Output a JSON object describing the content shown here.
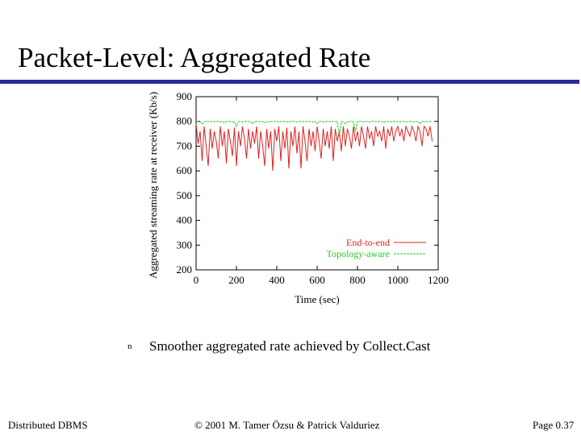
{
  "slide": {
    "title": "Packet-Level: Aggregated Rate",
    "bullet_marker": "n",
    "bullet_text": "Smoother aggregated rate achieved by Collect.Cast",
    "footer_left": "Distributed DBMS",
    "footer_center": "© 2001 M. Tamer Özsu & Patrick Valduriez",
    "footer_right": "Page 0.37",
    "rule_color": "#2b2b9a"
  },
  "chart_data": {
    "type": "line",
    "title": "",
    "xlabel": "Time (sec)",
    "ylabel": "Aggregated streaming rate at receiver (Kb/s)",
    "xlim": [
      0,
      1200
    ],
    "ylim": [
      200,
      900
    ],
    "xticks": [
      "0",
      "200",
      "400",
      "600",
      "800",
      "1000",
      "1200"
    ],
    "yticks": [
      "200",
      "300",
      "400",
      "500",
      "600",
      "700",
      "800",
      "900"
    ],
    "grid": false,
    "legend_position": "bottom-right",
    "series": [
      {
        "name": "End-to-end",
        "color": "#dd2222",
        "style": "solid",
        "x": [
          0,
          10,
          20,
          30,
          40,
          50,
          60,
          70,
          80,
          90,
          100,
          110,
          120,
          130,
          140,
          150,
          160,
          170,
          180,
          190,
          200,
          210,
          220,
          230,
          240,
          250,
          260,
          270,
          280,
          290,
          300,
          310,
          320,
          330,
          340,
          350,
          360,
          370,
          380,
          390,
          400,
          410,
          420,
          430,
          440,
          450,
          460,
          470,
          480,
          490,
          500,
          510,
          520,
          530,
          540,
          550,
          560,
          570,
          580,
          590,
          600,
          610,
          620,
          630,
          640,
          650,
          660,
          670,
          680,
          690,
          700,
          710,
          720,
          730,
          740,
          750,
          760,
          770,
          780,
          790,
          800,
          810,
          820,
          830,
          840,
          850,
          860,
          870,
          880,
          890,
          900,
          910,
          920,
          930,
          940,
          950,
          960,
          970,
          980,
          990,
          1000,
          1010,
          1020,
          1030,
          1040,
          1050,
          1060,
          1070,
          1080,
          1090,
          1100,
          1110,
          1120,
          1130,
          1140,
          1150,
          1160,
          1170
        ],
        "y": [
          790,
          710,
          760,
          640,
          780,
          700,
          620,
          770,
          690,
          760,
          720,
          650,
          780,
          700,
          760,
          630,
          770,
          720,
          660,
          775,
          620,
          760,
          700,
          780,
          730,
          650,
          770,
          690,
          760,
          710,
          780,
          650,
          760,
          700,
          620,
          770,
          690,
          760,
          600,
          770,
          720,
          780,
          640,
          760,
          690,
          775,
          610,
          760,
          700,
          780,
          670,
          760,
          610,
          780,
          720,
          640,
          770,
          700,
          760,
          680,
          780,
          720,
          650,
          770,
          700,
          760,
          690,
          780,
          640,
          770,
          720,
          760,
          680,
          780,
          700,
          770,
          740,
          690,
          780,
          720,
          760,
          700,
          780,
          740,
          690,
          780,
          730,
          760,
          700,
          780,
          740,
          760,
          720,
          780,
          690,
          770,
          740,
          780,
          720,
          760,
          780,
          740,
          770,
          720,
          780,
          760,
          740,
          780,
          760,
          720,
          780,
          760,
          700,
          780,
          770,
          740,
          780,
          720
        ]
      },
      {
        "name": "Topology-aware",
        "color": "#22cc22",
        "style": "dashed",
        "x": [
          0,
          10,
          20,
          30,
          40,
          50,
          60,
          70,
          80,
          90,
          100,
          110,
          120,
          130,
          140,
          150,
          160,
          170,
          180,
          190,
          200,
          210,
          220,
          230,
          240,
          250,
          260,
          270,
          280,
          290,
          300,
          310,
          320,
          330,
          340,
          350,
          360,
          370,
          380,
          390,
          400,
          410,
          420,
          430,
          440,
          450,
          460,
          470,
          480,
          490,
          500,
          510,
          520,
          530,
          540,
          550,
          560,
          570,
          580,
          590,
          600,
          610,
          620,
          630,
          640,
          650,
          660,
          670,
          680,
          690,
          700,
          710,
          720,
          730,
          740,
          750,
          760,
          770,
          780,
          790,
          800,
          810,
          820,
          830,
          840,
          850,
          860,
          870,
          880,
          890,
          900,
          910,
          920,
          930,
          940,
          950,
          960,
          970,
          980,
          990,
          1000,
          1010,
          1020,
          1030,
          1040,
          1050,
          1060,
          1070,
          1080,
          1090,
          1100,
          1110,
          1120,
          1130,
          1140,
          1150,
          1160,
          1170
        ],
        "y": [
          800,
          800,
          798,
          790,
          800,
          800,
          800,
          798,
          800,
          800,
          800,
          800,
          798,
          800,
          795,
          800,
          800,
          800,
          798,
          800,
          780,
          800,
          800,
          798,
          800,
          800,
          800,
          798,
          790,
          800,
          800,
          800,
          798,
          800,
          795,
          800,
          798,
          800,
          800,
          800,
          800,
          798,
          800,
          800,
          800,
          798,
          800,
          800,
          800,
          800,
          798,
          800,
          800,
          800,
          798,
          800,
          800,
          800,
          798,
          800,
          790,
          800,
          800,
          798,
          800,
          800,
          800,
          798,
          800,
          800,
          800,
          740,
          800,
          798,
          790,
          800,
          800,
          800,
          798,
          760,
          800,
          800,
          800,
          798,
          800,
          800,
          798,
          800,
          800,
          800,
          798,
          800,
          800,
          795,
          800,
          800,
          800,
          798,
          800,
          800,
          798,
          800,
          800,
          800,
          798,
          800,
          800,
          800,
          798,
          800,
          800,
          790,
          800,
          800,
          798,
          800,
          800,
          800
        ]
      }
    ]
  }
}
